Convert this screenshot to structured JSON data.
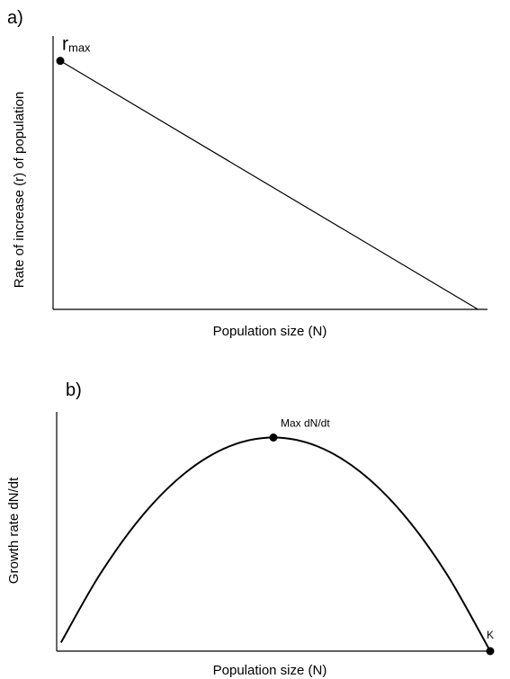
{
  "chart_data": [
    {
      "type": "line",
      "panel_label": "a)",
      "xlabel": "Population size (N)",
      "ylabel": "Rate of increase (r) of population",
      "title": "",
      "series": [
        {
          "x": [
            0,
            1
          ],
          "y": [
            1,
            0
          ]
        }
      ],
      "annotations": [
        {
          "label": "r",
          "subscript": "max",
          "x": 0,
          "y": 1
        }
      ],
      "xlim": [
        0,
        1.04
      ],
      "ylim": [
        0,
        1.1
      ],
      "grid": false
    },
    {
      "type": "line",
      "panel_label": "b)",
      "xlabel": "Population size (N)",
      "ylabel": "Growth rate dN/dt",
      "title": "",
      "series": [
        {
          "x": [
            0.01,
            0.1,
            0.2,
            0.3,
            0.4,
            0.5,
            0.6,
            0.7,
            0.8,
            0.9,
            1.0
          ],
          "y": [
            0.04,
            0.36,
            0.64,
            0.84,
            0.96,
            1.0,
            0.96,
            0.84,
            0.64,
            0.36,
            0.0
          ]
        }
      ],
      "annotations": [
        {
          "label": "Max dN/dt",
          "x": 0.5,
          "y": 1.0
        },
        {
          "label": "K",
          "x": 1.0,
          "y": 0.0
        }
      ],
      "xlim": [
        0,
        1.0
      ],
      "ylim": [
        0,
        1.12
      ],
      "grid": false
    }
  ]
}
